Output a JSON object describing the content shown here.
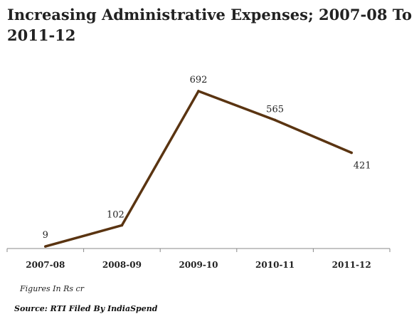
{
  "page": {
    "title": "Increasing Administrative Expenses; 2007-08 To 2011-12",
    "units_note": "Figures In Rs cr",
    "source": "Source: RTI Filed By IndiaSpend"
  },
  "chart_data": {
    "type": "line",
    "title": "Increasing Administrative Expenses; 2007-08 To 2011-12",
    "categories": [
      "2007-08",
      "2008-09",
      "2009-10",
      "2010-11",
      "2011-12"
    ],
    "values": [
      9,
      102,
      692,
      565,
      421
    ],
    "data_labels": [
      "9",
      "102",
      "692",
      "565",
      "421"
    ],
    "xlabel": "",
    "ylabel": "",
    "ylim": [
      0,
      700
    ],
    "grid": false,
    "legend": "none",
    "colors": {
      "line": "#5a3411",
      "axis": "#888888",
      "text": "#222222"
    }
  }
}
